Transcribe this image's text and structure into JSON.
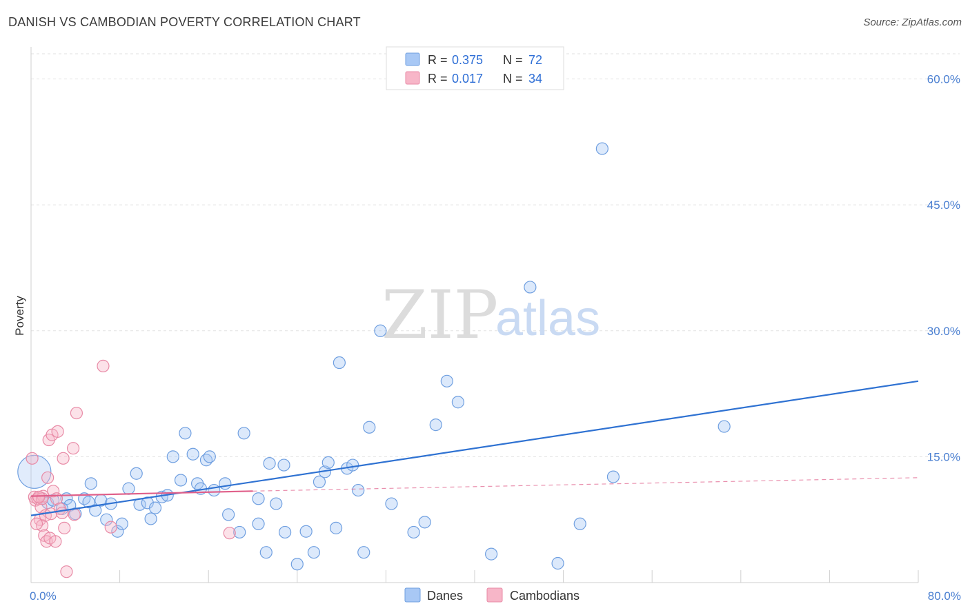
{
  "header": {
    "title": "DANISH VS CAMBODIAN POVERTY CORRELATION CHART",
    "source": "Source: ZipAtlas.com"
  },
  "watermark": {
    "zip": "ZIP",
    "atlas": "atlas"
  },
  "legend_top": {
    "rows": [
      {
        "r_label": "R = ",
        "r_value": "0.375",
        "n_label": "N = ",
        "n_value": "72",
        "color": "#a8c8f5"
      },
      {
        "r_label": "R = ",
        "r_value": "0.017",
        "n_label": "N = ",
        "n_value": "34",
        "color": "#f7b6c8"
      }
    ]
  },
  "legend_bottom": [
    {
      "label": "Danes",
      "color": "#a8c8f5"
    },
    {
      "label": "Cambodians",
      "color": "#f7b6c8"
    }
  ],
  "colors": {
    "danes_fill": "#a8c8f5",
    "danes_stroke": "#6f9fe0",
    "danes_line": "#2f72d2",
    "cambodians_fill": "#f7b6c8",
    "cambodians_stroke": "#e88aa6",
    "cambodians_line": "#e0608a",
    "grid": "#e2e2e2",
    "axis_text": "#4a7fd1"
  },
  "chart_data": {
    "type": "scatter",
    "title": "DANISH VS CAMBODIAN POVERTY CORRELATION CHART",
    "xlabel": "",
    "ylabel": "Poverty",
    "xlim": [
      0,
      80
    ],
    "ylim": [
      0,
      63
    ],
    "x_tick_labels": [
      {
        "value": 0,
        "label": "0.0%"
      },
      {
        "value": 80,
        "label": "80.0%"
      }
    ],
    "y_tick_labels": [
      {
        "value": 15,
        "label": "15.0%"
      },
      {
        "value": 30,
        "label": "30.0%"
      },
      {
        "value": 45,
        "label": "45.0%"
      },
      {
        "value": 60,
        "label": "60.0%"
      }
    ],
    "grid": true,
    "legend_position": "top-center",
    "series": [
      {
        "name": "Danes",
        "r": 0.375,
        "n": 72,
        "trend": {
          "x": [
            0,
            80
          ],
          "y": [
            8.0,
            24.0
          ],
          "style": "solid"
        },
        "points": [
          [
            0.3,
            13.2
          ],
          [
            1.0,
            10.0
          ],
          [
            1.5,
            9.5
          ],
          [
            2.0,
            9.8
          ],
          [
            3.2,
            10.0
          ],
          [
            3.5,
            9.2
          ],
          [
            2.8,
            8.8
          ],
          [
            4.0,
            8.2
          ],
          [
            4.8,
            10.0
          ],
          [
            5.2,
            9.6
          ],
          [
            5.4,
            11.8
          ],
          [
            5.8,
            8.6
          ],
          [
            6.3,
            9.8
          ],
          [
            6.8,
            7.5
          ],
          [
            7.2,
            9.4
          ],
          [
            7.8,
            6.1
          ],
          [
            8.2,
            7.0
          ],
          [
            8.8,
            11.2
          ],
          [
            9.5,
            13.0
          ],
          [
            9.8,
            9.3
          ],
          [
            10.5,
            9.5
          ],
          [
            10.8,
            7.6
          ],
          [
            11.2,
            8.9
          ],
          [
            11.8,
            10.2
          ],
          [
            12.3,
            10.4
          ],
          [
            12.8,
            15.0
          ],
          [
            13.5,
            12.2
          ],
          [
            13.9,
            17.8
          ],
          [
            14.6,
            15.3
          ],
          [
            15.0,
            11.8
          ],
          [
            15.3,
            11.2
          ],
          [
            15.8,
            14.6
          ],
          [
            16.1,
            15.0
          ],
          [
            16.5,
            11.0
          ],
          [
            17.5,
            11.8
          ],
          [
            17.8,
            8.1
          ],
          [
            18.8,
            6.0
          ],
          [
            19.2,
            17.8
          ],
          [
            20.5,
            7.0
          ],
          [
            20.5,
            10.0
          ],
          [
            21.2,
            3.6
          ],
          [
            21.5,
            14.2
          ],
          [
            22.1,
            9.4
          ],
          [
            22.8,
            14.0
          ],
          [
            22.9,
            6.0
          ],
          [
            24.0,
            2.2
          ],
          [
            24.8,
            6.1
          ],
          [
            25.5,
            3.6
          ],
          [
            26.0,
            12.0
          ],
          [
            26.5,
            13.2
          ],
          [
            26.8,
            14.3
          ],
          [
            27.5,
            6.5
          ],
          [
            27.8,
            26.2
          ],
          [
            28.5,
            13.6
          ],
          [
            29.0,
            14.0
          ],
          [
            29.5,
            11.0
          ],
          [
            30.5,
            18.5
          ],
          [
            31.5,
            30.0
          ],
          [
            32.5,
            9.4
          ],
          [
            34.5,
            6.0
          ],
          [
            35.5,
            7.2
          ],
          [
            36.5,
            18.8
          ],
          [
            37.5,
            24.0
          ],
          [
            38.5,
            21.5
          ],
          [
            41.5,
            3.4
          ],
          [
            45.0,
            35.2
          ],
          [
            47.5,
            2.3
          ],
          [
            49.5,
            7.0
          ],
          [
            51.5,
            51.7
          ],
          [
            52.5,
            12.6
          ],
          [
            62.5,
            18.6
          ],
          [
            30.0,
            3.6
          ]
        ]
      },
      {
        "name": "Cambodians",
        "r": 0.017,
        "n": 34,
        "trend": {
          "x": [
            0,
            20
          ],
          "y": [
            10.3,
            10.9
          ],
          "style": "solid",
          "extended_x": [
            20,
            80
          ],
          "extended_y": [
            10.9,
            12.5
          ]
        },
        "points": [
          [
            0.1,
            14.8
          ],
          [
            0.3,
            10.2
          ],
          [
            0.4,
            9.8
          ],
          [
            0.6,
            10.0
          ],
          [
            0.8,
            7.5
          ],
          [
            0.9,
            9.0
          ],
          [
            1.0,
            6.8
          ],
          [
            1.1,
            10.3
          ],
          [
            1.2,
            5.6
          ],
          [
            1.3,
            8.0
          ],
          [
            1.4,
            4.9
          ],
          [
            1.5,
            12.5
          ],
          [
            1.6,
            17.0
          ],
          [
            1.7,
            5.3
          ],
          [
            1.8,
            8.2
          ],
          [
            1.9,
            17.6
          ],
          [
            2.0,
            10.9
          ],
          [
            2.2,
            4.9
          ],
          [
            2.3,
            10.0
          ],
          [
            2.4,
            18.0
          ],
          [
            2.6,
            8.8
          ],
          [
            2.8,
            8.3
          ],
          [
            2.9,
            14.8
          ],
          [
            3.0,
            6.5
          ],
          [
            3.2,
            1.3
          ],
          [
            3.8,
            16.0
          ],
          [
            3.9,
            8.1
          ],
          [
            4.1,
            20.2
          ],
          [
            6.5,
            25.8
          ],
          [
            7.2,
            6.6
          ],
          [
            17.9,
            5.9
          ],
          [
            0.5,
            7.0
          ],
          [
            1.0,
            10.0
          ],
          [
            0.7,
            10.2
          ]
        ]
      }
    ]
  }
}
